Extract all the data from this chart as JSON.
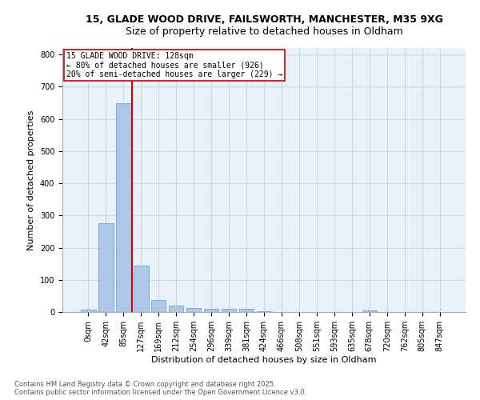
{
  "title1": "15, GLADE WOOD DRIVE, FAILSWORTH, MANCHESTER, M35 9XG",
  "title2": "Size of property relative to detached houses in Oldham",
  "xlabel": "Distribution of detached houses by size in Oldham",
  "ylabel": "Number of detached properties",
  "footnote1": "Contains HM Land Registry data © Crown copyright and database right 2025.",
  "footnote2": "Contains public sector information licensed under the Open Government Licence v3.0.",
  "annotation_line1": "15 GLADE WOOD DRIVE: 128sqm",
  "annotation_line2": "← 80% of detached houses are smaller (926)",
  "annotation_line3": "20% of semi-detached houses are larger (229) →",
  "bar_labels": [
    "0sqm",
    "42sqm",
    "85sqm",
    "127sqm",
    "169sqm",
    "212sqm",
    "254sqm",
    "296sqm",
    "339sqm",
    "381sqm",
    "424sqm",
    "466sqm",
    "508sqm",
    "551sqm",
    "593sqm",
    "635sqm",
    "678sqm",
    "720sqm",
    "762sqm",
    "805sqm",
    "847sqm"
  ],
  "bar_values": [
    7,
    275,
    648,
    143,
    38,
    20,
    13,
    10,
    10,
    9,
    2,
    0,
    0,
    0,
    0,
    0,
    5,
    0,
    0,
    0,
    0
  ],
  "bar_color": "#aec6e8",
  "bar_edge_color": "#5a9fd4",
  "vline_color": "#cc0000",
  "annotation_box_color": "#cc0000",
  "background_color": "#ffffff",
  "ax_background_color": "#e8f0f8",
  "grid_color": "#c8d8e8",
  "ylim": [
    0,
    820
  ],
  "yticks": [
    0,
    100,
    200,
    300,
    400,
    500,
    600,
    700,
    800
  ],
  "title1_fontsize": 9,
  "title2_fontsize": 9,
  "xlabel_fontsize": 8,
  "ylabel_fontsize": 8,
  "tick_fontsize": 7,
  "annotation_fontsize": 7,
  "footnote_fontsize": 6
}
